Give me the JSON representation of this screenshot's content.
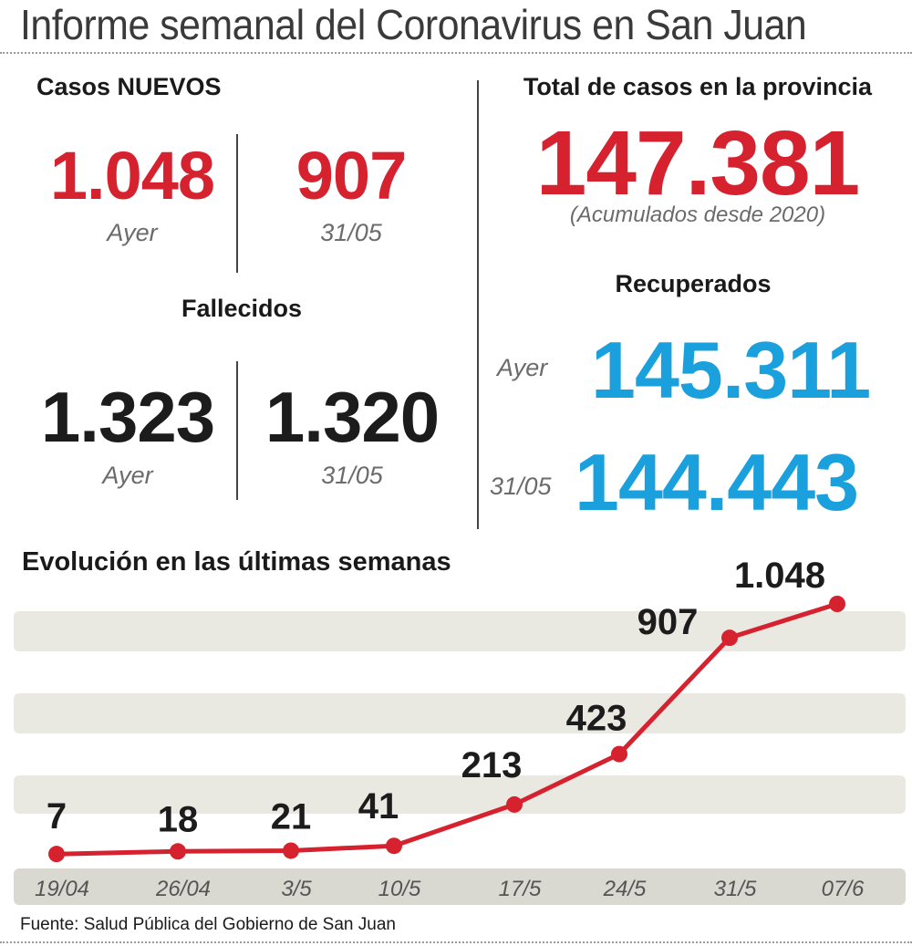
{
  "header": {
    "title": "Informe semanal del Coronavirus en San Juan"
  },
  "nuevos": {
    "heading": "Casos NUEVOS",
    "yesterday_value": "1.048",
    "yesterday_label": "Ayer",
    "prev_value": "907",
    "prev_label": "31/05"
  },
  "fallecidos": {
    "heading": "Fallecidos",
    "yesterday_value": "1.323",
    "yesterday_label": "Ayer",
    "prev_value": "1.320",
    "prev_label": "31/05"
  },
  "total": {
    "heading": "Total de casos en la provincia",
    "value": "147.381",
    "note": "(Acumulados desde 2020)"
  },
  "recuperados": {
    "heading": "Recuperados",
    "yesterday_label": "Ayer",
    "yesterday_value": "145.311",
    "prev_label": "31/05",
    "prev_value": "144.443"
  },
  "colors": {
    "red": "#d6222f",
    "blue": "#1aa0dc",
    "band": "#e9e9e2",
    "axis_band": "#d9d9d2"
  },
  "chart_data": {
    "type": "line",
    "title": "Evolución en las últimas semanas",
    "categories": [
      "19/04",
      "26/04",
      "3/5",
      "10/5",
      "17/5",
      "24/5",
      "31/5",
      "07/6"
    ],
    "series": [
      {
        "values": [
          7,
          18,
          21,
          41,
          213,
          423,
          907,
          1048
        ],
        "labels": [
          "7",
          "18",
          "21",
          "41",
          "213",
          "423",
          "907",
          "1.048"
        ]
      }
    ],
    "ylim": [
      0,
      1100
    ],
    "grid": true
  },
  "footer": {
    "source": "Fuente: Salud Pública del Gobierno de San Juan"
  }
}
